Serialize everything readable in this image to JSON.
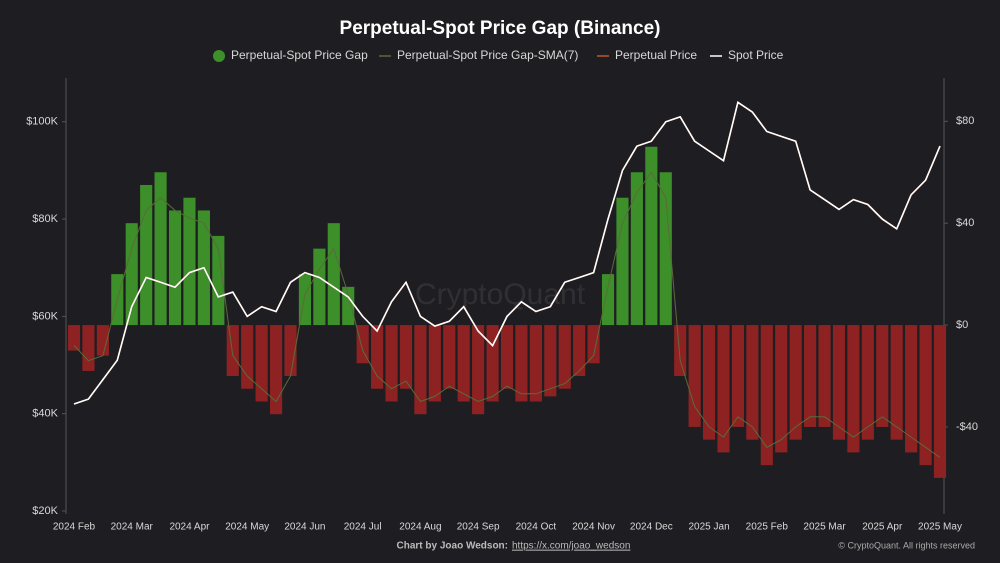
{
  "chart_data": {
    "type": "combo",
    "title": "Perpetual-Spot Price Gap (Binance)",
    "watermark": "CryptoQuant",
    "credit": "Chart by Joao Wedson:",
    "credit_link": "https://x.com/joao_wedson",
    "copyright": "© CryptoQuant. All rights reserved",
    "categories": [
      "2024 Feb",
      null,
      null,
      null,
      "2024 Mar",
      null,
      null,
      null,
      "2024 Apr",
      null,
      null,
      null,
      "2024 May",
      null,
      null,
      null,
      "2024 Jun",
      null,
      null,
      null,
      "2024 Jul",
      null,
      null,
      null,
      "2024 Aug",
      null,
      null,
      null,
      "2024 Sep",
      null,
      null,
      null,
      "2024 Oct",
      null,
      null,
      null,
      "2024 Nov",
      null,
      null,
      null,
      "2024 Dec",
      null,
      null,
      null,
      "2025 Jan",
      null,
      null,
      null,
      "2025 Feb",
      null,
      null,
      null,
      "2025 Mar",
      null,
      null,
      null,
      "2025 Apr",
      null,
      null,
      null,
      "2025 May"
    ],
    "series": [
      {
        "name": "Perpetual-Spot Price Gap",
        "type": "bar",
        "axis": "y2",
        "color": "#3d8f2a",
        "negative_color": "#8e2222",
        "values": [
          -10,
          -18,
          -12,
          20,
          40,
          55,
          60,
          45,
          50,
          45,
          35,
          -20,
          -25,
          -30,
          -35,
          -20,
          20,
          30,
          40,
          15,
          -15,
          -25,
          -30,
          -25,
          -35,
          -30,
          -25,
          -30,
          -35,
          -30,
          -25,
          -30,
          -30,
          -28,
          -25,
          -20,
          -15,
          20,
          50,
          60,
          70,
          60,
          -20,
          -40,
          -45,
          -50,
          -40,
          -45,
          -55,
          -50,
          -45,
          -40,
          -40,
          -45,
          -50,
          -45,
          -40,
          -45,
          -50,
          -55,
          -60
        ]
      },
      {
        "name": "Perpetual-Spot Price Gap-SMA(7)",
        "type": "line",
        "axis": "y2",
        "color": "#5b6b3a",
        "values": [
          -8,
          -14,
          -12,
          10,
          30,
          45,
          50,
          45,
          42,
          40,
          30,
          -12,
          -20,
          -25,
          -30,
          -20,
          12,
          22,
          30,
          12,
          -10,
          -20,
          -25,
          -22,
          -30,
          -28,
          -24,
          -27,
          -30,
          -28,
          -24,
          -27,
          -27,
          -25,
          -23,
          -18,
          -12,
          15,
          40,
          52,
          60,
          50,
          -14,
          -32,
          -40,
          -44,
          -36,
          -40,
          -48,
          -45,
          -40,
          -36,
          -36,
          -40,
          -44,
          -40,
          -36,
          -40,
          -44,
          -48,
          -52
        ]
      },
      {
        "name": "Perpetual Price",
        "type": "line",
        "axis": "y",
        "color": "#c0562a",
        "values": [
          42000,
          43000,
          47000,
          51000,
          62000,
          68000,
          67000,
          66000,
          69000,
          70000,
          64000,
          65000,
          60000,
          62000,
          61000,
          67000,
          69000,
          68000,
          66000,
          64000,
          60000,
          57000,
          63000,
          67000,
          60000,
          58000,
          59000,
          62000,
          57000,
          54000,
          60000,
          63000,
          61000,
          62000,
          67000,
          68000,
          69000,
          80000,
          90000,
          95000,
          96000,
          100000,
          101000,
          96000,
          94000,
          92000,
          104000,
          102000,
          98000,
          97000,
          96000,
          86000,
          84000,
          82000,
          84000,
          83000,
          80000,
          78000,
          85000,
          88000,
          95000
        ]
      },
      {
        "name": "Spot Price",
        "type": "line",
        "axis": "y",
        "color": "#ffffff",
        "values": [
          42000,
          43000,
          47000,
          51000,
          62000,
          68000,
          67000,
          66000,
          69000,
          70000,
          64000,
          65000,
          60000,
          62000,
          61000,
          67000,
          69000,
          68000,
          66000,
          64000,
          60000,
          57000,
          63000,
          67000,
          60000,
          58000,
          59000,
          62000,
          57000,
          54000,
          60000,
          63000,
          61000,
          62000,
          67000,
          68000,
          69000,
          80000,
          90000,
          95000,
          96000,
          100000,
          101000,
          96000,
          94000,
          92000,
          104000,
          102000,
          98000,
          97000,
          96000,
          86000,
          84000,
          82000,
          84000,
          83000,
          80000,
          78000,
          85000,
          88000,
          95000
        ]
      }
    ],
    "ylim": [
      20000,
      109000
    ],
    "yticks": [
      {
        "value": 20000,
        "label": "$20K"
      },
      {
        "value": 40000,
        "label": "$40K"
      },
      {
        "value": 60000,
        "label": "$60K"
      },
      {
        "value": 80000,
        "label": "$80K"
      },
      {
        "value": 100000,
        "label": "$100K"
      }
    ],
    "y2lim": [
      -73,
      97
    ],
    "y2ticks": [
      {
        "value": -40,
        "label": "-$40"
      },
      {
        "value": 0,
        "label": "$0"
      },
      {
        "value": 40,
        "label": "$40"
      },
      {
        "value": 80,
        "label": "$80"
      }
    ],
    "legend": "top"
  }
}
